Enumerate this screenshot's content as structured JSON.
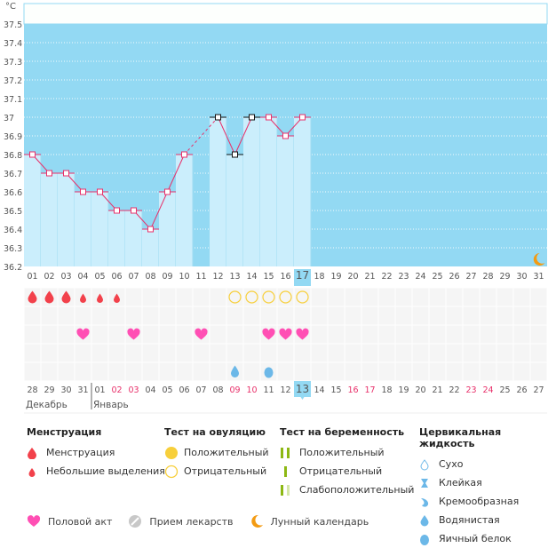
{
  "chart_data": {
    "type": "line",
    "title": "",
    "unit_label": "°C",
    "ylim": [
      36.2,
      37.6
    ],
    "y_ticks": [
      "37.5",
      "37.4",
      "37.3",
      "37.2",
      "37.1",
      "37",
      "36.9",
      "36.8",
      "36.7",
      "36.6",
      "36.5",
      "36.4",
      "36.3",
      "36.2"
    ],
    "x_cycle_days": [
      "01",
      "02",
      "03",
      "04",
      "05",
      "06",
      "07",
      "08",
      "09",
      "10",
      "11",
      "12",
      "13",
      "14",
      "15",
      "16",
      "17",
      "18",
      "19",
      "20",
      "21",
      "22",
      "23",
      "24",
      "25",
      "26",
      "27",
      "28",
      "29",
      "30",
      "31"
    ],
    "current_day_index": 16,
    "temperatures": [
      36.8,
      36.7,
      36.7,
      36.6,
      36.6,
      36.5,
      36.5,
      36.4,
      36.6,
      36.8,
      null,
      37.0,
      36.8,
      37.0,
      37.0,
      36.9,
      37.0,
      null,
      null,
      null,
      null,
      null,
      null,
      null,
      null,
      null,
      null,
      null,
      null,
      null,
      null
    ],
    "excluded_points": [
      11,
      12,
      13
    ],
    "grid": true,
    "rows": {
      "menstruation": [
        "heavy",
        "heavy",
        "heavy",
        "light",
        "light",
        "light",
        "",
        "",
        "",
        "",
        "",
        "",
        "",
        "",
        "",
        "",
        "",
        "",
        "",
        "",
        "",
        "",
        "",
        "",
        "",
        "",
        "",
        "",
        "",
        "",
        ""
      ],
      "ovulation_test": [
        "",
        "",
        "",
        "",
        "",
        "",
        "",
        "",
        "",
        "",
        "",
        "",
        "negative",
        "negative",
        "negative",
        "negative",
        "negative",
        "",
        "",
        "",
        "",
        "",
        "",
        "",
        "",
        "",
        "",
        "",
        "",
        "",
        ""
      ],
      "pregnancy_test": [
        "",
        "",
        "",
        "",
        "",
        "",
        "",
        "",
        "",
        "",
        "",
        "",
        "",
        "",
        "",
        "",
        "",
        "",
        "",
        "",
        "",
        "",
        "",
        "",
        "",
        "",
        "",
        "",
        "",
        "",
        ""
      ],
      "intercourse": [
        "",
        "",
        "",
        "yes",
        "",
        "",
        "yes",
        "",
        "",
        "",
        "yes",
        "",
        "",
        "",
        "yes",
        "yes",
        "yes",
        "",
        "",
        "",
        "",
        "",
        "",
        "",
        "",
        "",
        "",
        "",
        "",
        "",
        ""
      ],
      "medication": [
        "",
        "",
        "",
        "",
        "",
        "",
        "",
        "",
        "",
        "",
        "",
        "",
        "",
        "",
        "",
        "",
        "",
        "",
        "",
        "",
        "",
        "",
        "",
        "",
        "",
        "",
        "",
        "",
        "",
        "",
        ""
      ],
      "cervical_fluid": [
        "",
        "",
        "",
        "",
        "",
        "",
        "",
        "",
        "",
        "",
        "",
        "",
        "watery",
        "",
        "egg-white",
        "",
        "",
        "",
        "",
        "",
        "",
        "",
        "",
        "",
        "",
        "",
        "",
        "",
        "",
        "",
        ""
      ]
    },
    "moon_day_index": 30,
    "calendar_dates": [
      "28",
      "29",
      "30",
      "31",
      "01",
      "02",
      "03",
      "04",
      "05",
      "06",
      "07",
      "08",
      "09",
      "10",
      "11",
      "12",
      "13",
      "14",
      "15",
      "16",
      "17",
      "18",
      "19",
      "20",
      "21",
      "22",
      "23",
      "24",
      "25",
      "26",
      "27"
    ],
    "weekend_date_indices": [
      5,
      6,
      12,
      13,
      19,
      20,
      26,
      27
    ],
    "month_labels": [
      {
        "label": "Декабрь",
        "start_index": 0
      },
      {
        "label": "Январь",
        "start_index": 4
      }
    ]
  },
  "legend": {
    "menstruation": {
      "title": "Менструация",
      "items": [
        "Менструация",
        "Небольшие выделения"
      ]
    },
    "ovulation": {
      "title": "Тест на овуляцию",
      "items": [
        "Положительный",
        "Отрицательный"
      ]
    },
    "pregnancy": {
      "title": "Тест на беременность",
      "items": [
        "Положительный",
        "Отрицательный",
        "Слабоположительный"
      ]
    },
    "cervical": {
      "title": "Цервикальная жидкость",
      "items": [
        "Сухо",
        "Клейкая",
        "Кремообразная",
        "Водянистая",
        "Яичный белок"
      ]
    },
    "bottom": [
      "Половой акт",
      "Прием лекарств",
      "Лунный календарь"
    ]
  },
  "colors": {
    "sky": "#93d9f3",
    "bar": "#cbeefc",
    "line": "#e8306a",
    "blood": "#f2414b",
    "heart": "#ff4fb4",
    "ovulation": "#f7cf3b",
    "fluid": "#6cb8e8",
    "pregnancy": "#8db814",
    "moon": "#f39b13",
    "weekend": "#e8306a"
  }
}
